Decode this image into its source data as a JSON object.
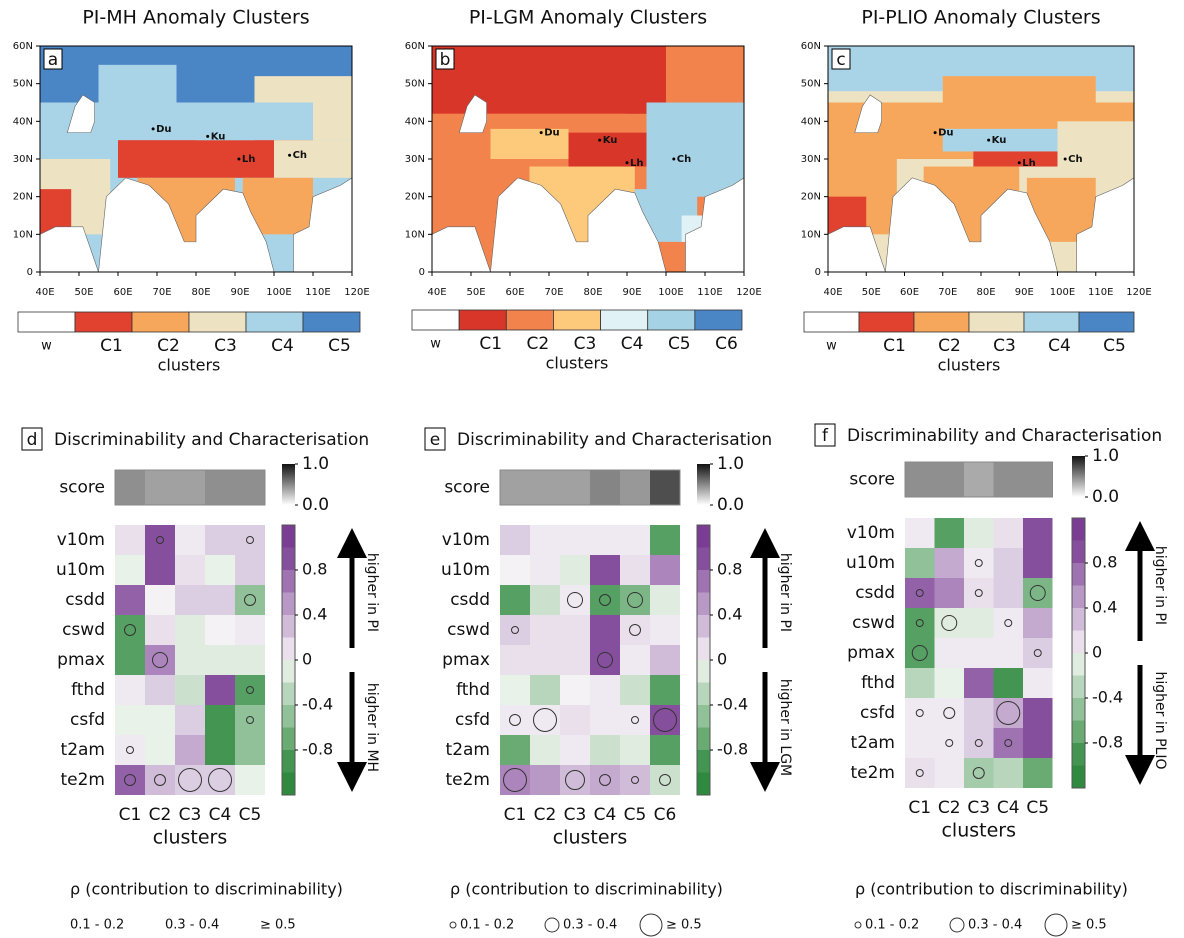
{
  "chart_data": [
    {
      "type": "map",
      "panel": "a",
      "title": "PI-MH Anomaly Clusters",
      "xlim": [
        40,
        120
      ],
      "ylim": [
        0,
        60
      ],
      "xticks": [
        {
          "value": 40,
          "label": "40E"
        },
        {
          "value": 50,
          "label": "50E"
        },
        {
          "value": 60,
          "label": "60E"
        },
        {
          "value": 70,
          "label": "70E"
        },
        {
          "value": 80,
          "label": "80E"
        },
        {
          "value": 90,
          "label": "90E"
        },
        {
          "value": 100,
          "label": "100E"
        },
        {
          "value": 110,
          "label": "110E"
        },
        {
          "value": 120,
          "label": "120E"
        }
      ],
      "yticks": [
        0,
        {
          "value": 10,
          "label": "10N"
        },
        {
          "value": 20,
          "label": "20N"
        },
        {
          "value": 30,
          "label": "30N"
        },
        {
          "value": 40,
          "label": "40N"
        },
        {
          "value": 50,
          "label": "50N"
        },
        {
          "value": 60,
          "label": "60N"
        }
      ],
      "cities": [
        {
          "label": "Du",
          "lon": 69,
          "lat": 38
        },
        {
          "label": "Ku",
          "lon": 83,
          "lat": 36
        },
        {
          "label": "Lh",
          "lon": 91,
          "lat": 30
        },
        {
          "label": "Ch",
          "lon": 104,
          "lat": 31
        }
      ],
      "legend": {
        "categories": [
          "w",
          "C1",
          "C2",
          "C3",
          "C4",
          "C5"
        ],
        "colors": [
          "#ffffff",
          "#e0422f",
          "#f7a75c",
          "#ede3c2",
          "#a9d4e8",
          "#4a85c6"
        ],
        "label": "clusters"
      }
    },
    {
      "type": "map",
      "panel": "b",
      "title": "PI-LGM Anomaly Clusters",
      "xlim": [
        40,
        120
      ],
      "ylim": [
        0,
        60
      ],
      "xticks": [
        {
          "value": 40,
          "label": "40E"
        },
        {
          "value": 50,
          "label": "50E"
        },
        {
          "value": 60,
          "label": "60E"
        },
        {
          "value": 70,
          "label": "70E"
        },
        {
          "value": 80,
          "label": "80E"
        },
        {
          "value": 90,
          "label": "90E"
        },
        {
          "value": 100,
          "label": "100E"
        },
        {
          "value": 110,
          "label": "110E"
        },
        {
          "value": 120,
          "label": "120E"
        }
      ],
      "yticks": [
        0,
        {
          "value": 10,
          "label": "10N"
        },
        {
          "value": 20,
          "label": "20N"
        },
        {
          "value": 30,
          "label": "30N"
        },
        {
          "value": 40,
          "label": "40N"
        },
        {
          "value": 50,
          "label": "50N"
        },
        {
          "value": 60,
          "label": "60N"
        }
      ],
      "cities": [
        {
          "label": "Du",
          "lon": 68,
          "lat": 37
        },
        {
          "label": "Ku",
          "lon": 83,
          "lat": 35
        },
        {
          "label": "Lh",
          "lon": 90,
          "lat": 29
        },
        {
          "label": "Ch",
          "lon": 102,
          "lat": 30
        }
      ],
      "legend": {
        "categories": [
          "w",
          "C1",
          "C2",
          "C3",
          "C4",
          "C5",
          "C6"
        ],
        "colors": [
          "#ffffff",
          "#d9362a",
          "#f2834d",
          "#fdc97a",
          "#e1f2f7",
          "#a6d2e6",
          "#4a85c6"
        ],
        "label": "clusters"
      }
    },
    {
      "type": "map",
      "panel": "c",
      "title": "PI-PLIO Anomaly Clusters",
      "xlim": [
        40,
        120
      ],
      "ylim": [
        0,
        60
      ],
      "xticks": [
        {
          "value": 40,
          "label": "40E"
        },
        {
          "value": 50,
          "label": "50E"
        },
        {
          "value": 60,
          "label": "60E"
        },
        {
          "value": 70,
          "label": "70E"
        },
        {
          "value": 80,
          "label": "80E"
        },
        {
          "value": 90,
          "label": "90E"
        },
        {
          "value": 100,
          "label": "100E"
        },
        {
          "value": 110,
          "label": "110E"
        },
        {
          "value": 120,
          "label": "120E"
        }
      ],
      "yticks": [
        0,
        {
          "value": 10,
          "label": "10N"
        },
        {
          "value": 20,
          "label": "20N"
        },
        {
          "value": 30,
          "label": "30N"
        },
        {
          "value": 40,
          "label": "40N"
        },
        {
          "value": 50,
          "label": "50N"
        },
        {
          "value": 60,
          "label": "60N"
        }
      ],
      "cities": [
        {
          "label": "Du",
          "lon": 68,
          "lat": 37
        },
        {
          "label": "Ku",
          "lon": 82,
          "lat": 35
        },
        {
          "label": "Lh",
          "lon": 90,
          "lat": 29
        },
        {
          "label": "Ch",
          "lon": 102,
          "lat": 30
        }
      ],
      "legend": {
        "categories": [
          "w",
          "C1",
          "C2",
          "C3",
          "C4",
          "C5"
        ],
        "colors": [
          "#ffffff",
          "#e0422f",
          "#f7a75c",
          "#ede3c2",
          "#a9d4e8",
          "#4a85c6"
        ],
        "label": "clusters"
      }
    },
    {
      "type": "heatmap",
      "panel": "d",
      "title": "Discriminability and Characterisation",
      "rows": [
        "v10m",
        "u10m",
        "csdd",
        "cswd",
        "pmax",
        "fthd",
        "csfd",
        "t2am",
        "te2m"
      ],
      "categories": [
        "C1",
        "C2",
        "C3",
        "C4",
        "C5"
      ],
      "xlabel": "clusters",
      "values": [
        [
          0.1,
          0.9,
          0.05,
          0.2,
          0.2
        ],
        [
          -0.05,
          0.9,
          0.1,
          -0.05,
          0.2
        ],
        [
          0.8,
          0,
          0.2,
          0.2,
          -0.5
        ],
        [
          -0.8,
          0.1,
          -0.1,
          0,
          0.05
        ],
        [
          -0.8,
          0.6,
          -0.1,
          -0.1,
          -0.1
        ],
        [
          0.05,
          0.2,
          -0.2,
          0.9,
          -0.8
        ],
        [
          -0.05,
          -0.05,
          0.2,
          -0.9,
          -0.5
        ],
        [
          0.05,
          -0.05,
          0.4,
          -0.9,
          -0.5
        ],
        [
          0.8,
          0.3,
          0.2,
          0.2,
          -0.05
        ]
      ],
      "rho": [
        [
          null,
          0.1,
          null,
          null,
          0.1
        ],
        [
          null,
          null,
          null,
          null,
          null
        ],
        [
          null,
          null,
          null,
          null,
          0.2
        ],
        [
          0.2,
          null,
          null,
          null,
          null
        ],
        [
          null,
          0.3,
          null,
          null,
          null
        ],
        [
          null,
          null,
          null,
          null,
          0.1
        ],
        [
          null,
          null,
          null,
          null,
          0.1
        ],
        [
          0.1,
          null,
          null,
          null,
          null
        ],
        [
          0.2,
          0.2,
          0.5,
          0.5,
          null
        ]
      ],
      "score": {
        "label": "score",
        "values": [
          0.5,
          0.4,
          0.4,
          0.5,
          0.5
        ],
        "ylim": [
          0,
          1
        ],
        "yticks": [
          {
            "value": 1,
            "label": "1.0"
          },
          {
            "value": 0,
            "label": "0.0"
          }
        ]
      },
      "colorbar": {
        "ylim": [
          -1.2,
          1.2
        ],
        "yticks": [
          0.8,
          0.4,
          0,
          -0.4,
          -0.8
        ]
      },
      "arrow_labels": [
        "higher in PI",
        "higher in MH"
      ],
      "size_legend": {
        "title": "ρ (contribution to discriminability)",
        "items": [
          "0.1 - 0.2",
          "0.3 - 0.4",
          "≥ 0.5"
        ]
      }
    },
    {
      "type": "heatmap",
      "panel": "e",
      "title": "Discriminability and Characterisation",
      "rows": [
        "v10m",
        "u10m",
        "csdd",
        "cswd",
        "pmax",
        "fthd",
        "csfd",
        "t2am",
        "te2m"
      ],
      "categories": [
        "C1",
        "C2",
        "C3",
        "C4",
        "C5",
        "C6"
      ],
      "xlabel": "clusters",
      "values": [
        [
          0.2,
          0.05,
          0.05,
          0.05,
          0.05,
          -0.8
        ],
        [
          0,
          0.05,
          -0.1,
          0.9,
          0.1,
          0.6
        ],
        [
          -0.8,
          -0.2,
          0.05,
          -0.8,
          -0.6,
          -0.1
        ],
        [
          0.2,
          0.1,
          0.1,
          0.9,
          0.1,
          0.05
        ],
        [
          0.1,
          0.1,
          0.1,
          0.9,
          0.05,
          0.3
        ],
        [
          -0.05,
          -0.3,
          0,
          0.05,
          -0.2,
          -0.8
        ],
        [
          0.05,
          0.05,
          0.1,
          0.05,
          0.05,
          0.9
        ],
        [
          -0.7,
          -0.1,
          0.05,
          -0.2,
          -0.1,
          -0.8
        ],
        [
          0.6,
          0.5,
          0.3,
          0.4,
          0.3,
          -0.2
        ]
      ],
      "rho": [
        [
          null,
          null,
          null,
          null,
          null,
          null
        ],
        [
          null,
          null,
          null,
          null,
          null,
          null
        ],
        [
          null,
          null,
          0.3,
          0.2,
          0.3,
          null
        ],
        [
          0.1,
          null,
          null,
          null,
          0.2,
          null
        ],
        [
          null,
          null,
          null,
          0.3,
          null,
          null
        ],
        [
          null,
          null,
          null,
          null,
          null,
          null
        ],
        [
          0.2,
          0.5,
          null,
          null,
          0.1,
          0.5
        ],
        [
          null,
          null,
          null,
          null,
          null,
          null
        ],
        [
          0.5,
          null,
          0.4,
          0.2,
          0.1,
          0.2
        ]
      ],
      "score": {
        "label": "score",
        "values": [
          0.4,
          0.4,
          0.4,
          0.55,
          0.45,
          0.85
        ],
        "ylim": [
          0,
          1
        ],
        "yticks": [
          {
            "value": 1,
            "label": "1.0"
          },
          {
            "value": 0,
            "label": "0.0"
          }
        ]
      },
      "colorbar": {
        "ylim": [
          -1.2,
          1.2
        ],
        "yticks": [
          0.8,
          0.4,
          0,
          -0.4,
          -0.8
        ]
      },
      "arrow_labels": [
        "higher in PI",
        "higher in LGM"
      ],
      "size_legend": {
        "title": "ρ (contribution to discriminability)",
        "items": [
          "0.1 - 0.2",
          "0.3 - 0.4",
          "≥ 0.5"
        ]
      }
    },
    {
      "type": "heatmap",
      "panel": "f",
      "title": "Discriminability and Characterisation",
      "rows": [
        "v10m",
        "u10m",
        "csdd",
        "cswd",
        "pmax",
        "fthd",
        "csfd",
        "t2am",
        "te2m"
      ],
      "categories": [
        "C1",
        "C2",
        "C3",
        "C4",
        "C5"
      ],
      "xlabel": "clusters",
      "values": [
        [
          0.05,
          -0.8,
          -0.1,
          0.1,
          0.9
        ],
        [
          -0.5,
          0.4,
          0.05,
          0.2,
          0.9
        ],
        [
          0.8,
          0.6,
          0.1,
          0.2,
          -0.6
        ],
        [
          -0.8,
          -0.1,
          -0.1,
          0.05,
          0.4
        ],
        [
          -0.8,
          0.05,
          0.05,
          0.05,
          0.2
        ],
        [
          -0.3,
          -0.05,
          0.8,
          -0.9,
          0.05
        ],
        [
          0.05,
          0.05,
          0.2,
          0.4,
          0.9
        ],
        [
          0.05,
          0.05,
          0.2,
          0.7,
          0.9
        ],
        [
          0.1,
          0.05,
          -0.4,
          -0.3,
          -0.7
        ]
      ],
      "rho": [
        [
          null,
          null,
          null,
          null,
          null
        ],
        [
          null,
          null,
          0.1,
          null,
          null
        ],
        [
          0.1,
          null,
          0.1,
          null,
          0.3
        ],
        [
          0.1,
          0.3,
          null,
          0.1,
          null
        ],
        [
          0.3,
          null,
          null,
          null,
          0.1
        ],
        [
          null,
          null,
          null,
          null,
          null
        ],
        [
          0.1,
          0.2,
          null,
          0.5,
          null
        ],
        [
          null,
          0.1,
          0.1,
          0.1,
          null
        ],
        [
          0.1,
          null,
          0.2,
          null,
          null
        ]
      ],
      "score": {
        "label": "score",
        "values": [
          0.5,
          0.5,
          0.35,
          0.5,
          0.5
        ],
        "ylim": [
          0,
          1
        ],
        "yticks": [
          {
            "value": 1,
            "label": "1.0"
          },
          {
            "value": 0,
            "label": "0.0"
          }
        ]
      },
      "colorbar": {
        "ylim": [
          -1.2,
          1.2
        ],
        "yticks": [
          0.8,
          0.4,
          0,
          -0.4,
          -0.8
        ]
      },
      "arrow_labels": [
        "higher in PI",
        "higher in PLIO"
      ],
      "size_legend": {
        "title": "ρ (contribution to discriminability)",
        "items": [
          "0.1 - 0.2",
          "0.3 - 0.4",
          "≥ 0.5"
        ]
      }
    }
  ]
}
